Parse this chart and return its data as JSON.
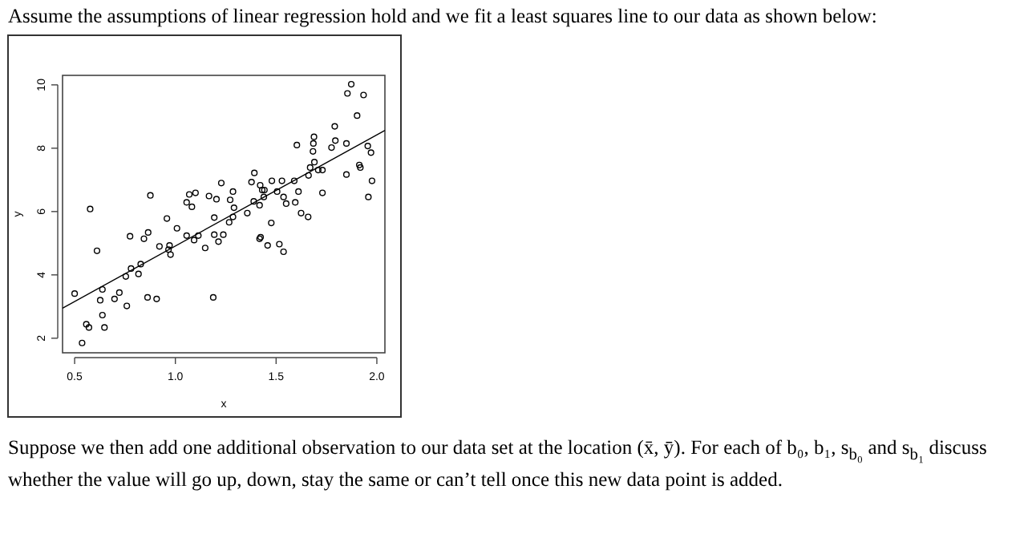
{
  "chart_data": {
    "type": "scatter",
    "title": "Assume the assumptions of linear regression hold and we fit a least squares line to our data as shown below:",
    "annotations": [
      "Suppose we then add one additional observation to our data set at the location (x̄, ȳ). For each of b₀, b₁, s$_{b₀}$ and s$_{b₁}$ discuss whether the value will go up, down, stay the same or can’t tell once this new data point is added."
    ],
    "xlabel": "x",
    "ylabel": "y",
    "xlim": [
      0.44,
      2.04
    ],
    "ylim": [
      1.54,
      10.3
    ],
    "xticks": [
      0.5,
      {
        "value": 1,
        "label": "1.0"
      },
      1.5,
      {
        "value": 2,
        "label": "2.0"
      }
    ],
    "yticks": [
      2,
      4,
      6,
      8,
      10
    ],
    "marker": "circle",
    "series": [
      {
        "color": "#000000",
        "x": [
          0.5,
          0.577,
          0.537,
          0.558,
          0.571,
          0.611,
          0.627,
          0.638,
          0.638,
          0.648,
          0.698,
          0.722,
          0.759,
          0.754,
          0.78,
          0.775,
          0.817,
          0.828,
          0.844,
          0.865,
          0.862,
          0.907,
          0.876,
          0.921,
          0.958,
          0.966,
          0.971,
          0.976,
          1.008,
          1.056,
          1.069,
          1.1,
          1.082,
          1.056,
          1.093,
          1.114,
          1.148,
          1.167,
          1.193,
          1.188,
          1.204,
          1.193,
          1.228,
          1.214,
          1.238,
          1.286,
          1.291,
          1.272,
          1.286,
          1.267,
          1.357,
          1.378,
          1.392,
          1.389,
          1.418,
          1.421,
          1.431,
          1.442,
          1.439,
          1.423,
          1.418,
          1.458,
          1.476,
          1.479,
          1.505,
          1.516,
          1.537,
          1.529,
          1.537,
          1.55,
          1.59,
          1.595,
          1.603,
          1.611,
          1.624,
          1.659,
          1.661,
          1.669,
          1.683,
          1.685,
          1.688,
          1.69,
          1.709,
          1.73,
          1.73,
          1.775,
          1.791,
          1.794,
          1.849,
          1.849,
          1.854,
          1.873,
          1.902,
          1.913,
          1.918,
          1.934,
          1.955,
          1.971,
          1.976,
          1.958
        ],
        "values": [
          3.41,
          6.08,
          1.85,
          2.44,
          2.34,
          4.76,
          3.2,
          3.54,
          2.73,
          2.34,
          3.24,
          3.44,
          3.02,
          3.95,
          4.2,
          5.22,
          4.03,
          4.34,
          5.14,
          5.34,
          3.29,
          3.24,
          6.51,
          4.9,
          5.78,
          4.8,
          4.93,
          4.64,
          5.47,
          6.29,
          6.54,
          6.59,
          6.15,
          5.24,
          5.1,
          5.24,
          4.85,
          6.49,
          5.27,
          3.29,
          6.39,
          5.81,
          6.9,
          5.05,
          5.27,
          6.63,
          6.12,
          6.37,
          5.83,
          5.66,
          5.95,
          6.93,
          7.22,
          6.32,
          6.2,
          6.83,
          6.68,
          6.68,
          6.46,
          5.19,
          5.14,
          4.93,
          5.64,
          6.97,
          6.63,
          4.97,
          4.73,
          6.97,
          6.46,
          6.25,
          6.97,
          6.29,
          8.1,
          6.63,
          5.95,
          5.83,
          7.14,
          7.39,
          7.9,
          8.15,
          8.36,
          7.56,
          7.31,
          6.59,
          7.31,
          8.02,
          8.69,
          8.24,
          8.15,
          7.17,
          9.73,
          10.02,
          9.03,
          7.47,
          7.39,
          9.68,
          8.07,
          7.86,
          6.97,
          6.46
        ]
      },
      {
        "type": "line",
        "color": "#000000",
        "marker": "none",
        "x": [
          0.44,
          2.04
        ],
        "values": [
          2.95,
          8.56
        ]
      }
    ]
  }
}
